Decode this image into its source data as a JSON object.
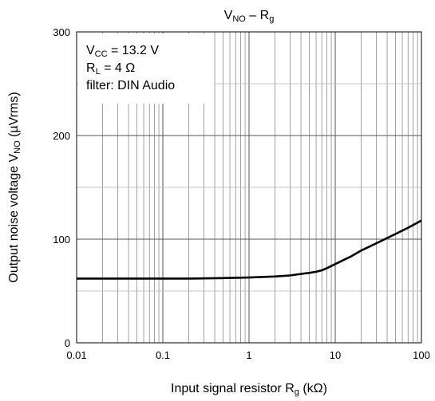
{
  "chart_data": {
    "type": "line",
    "title": {
      "main": "V",
      "main_sub": "NO",
      "sep": " – R",
      "tail_sub": "g"
    },
    "xlabel": {
      "pre": "Input signal resistor R",
      "sub": "g",
      "post": " (kΩ)"
    },
    "ylabel": {
      "pre": "Output noise voltage V",
      "sub": "NO",
      "post": " (µVrms)"
    },
    "x_scale": "log",
    "xlim": [
      0.01,
      100
    ],
    "ylim": [
      0,
      300
    ],
    "x_ticks": [
      {
        "value": 0.01,
        "label": "0.01"
      },
      {
        "value": 0.1,
        "label": "0.1"
      },
      {
        "value": 1,
        "label": "1"
      },
      {
        "value": 10,
        "label": "10"
      },
      {
        "value": 100,
        "label": "100"
      }
    ],
    "y_ticks": [
      {
        "value": 0,
        "label": "0"
      },
      {
        "value": 100,
        "label": "100"
      },
      {
        "value": 200,
        "label": "200"
      },
      {
        "value": 300,
        "label": "300"
      }
    ],
    "y_minor_grid": [
      50,
      150,
      250
    ],
    "grid": true,
    "annotations": {
      "line1": {
        "pre": "V",
        "sub": "CC",
        "post": " = 13.2 V"
      },
      "line2": {
        "pre": "R",
        "sub": "L",
        "post": " = 4 Ω"
      },
      "line3": "filter: DIN Audio",
      "placement": "top-left"
    },
    "series": [
      {
        "x": [
          0.01,
          0.02,
          0.05,
          0.1,
          0.2,
          0.5,
          1,
          2,
          3,
          4,
          5,
          6,
          7,
          8,
          10,
          15,
          20,
          30,
          50,
          70,
          100
        ],
        "y": [
          62,
          62,
          62,
          62,
          62,
          62.5,
          63,
          64,
          65,
          66.5,
          67.5,
          68.5,
          70,
          72,
          76,
          83,
          89,
          96,
          105,
          111,
          118
        ]
      }
    ],
    "colors": {
      "line": "#000000",
      "grid": "#8c8c8c",
      "axis": "#000000"
    }
  }
}
